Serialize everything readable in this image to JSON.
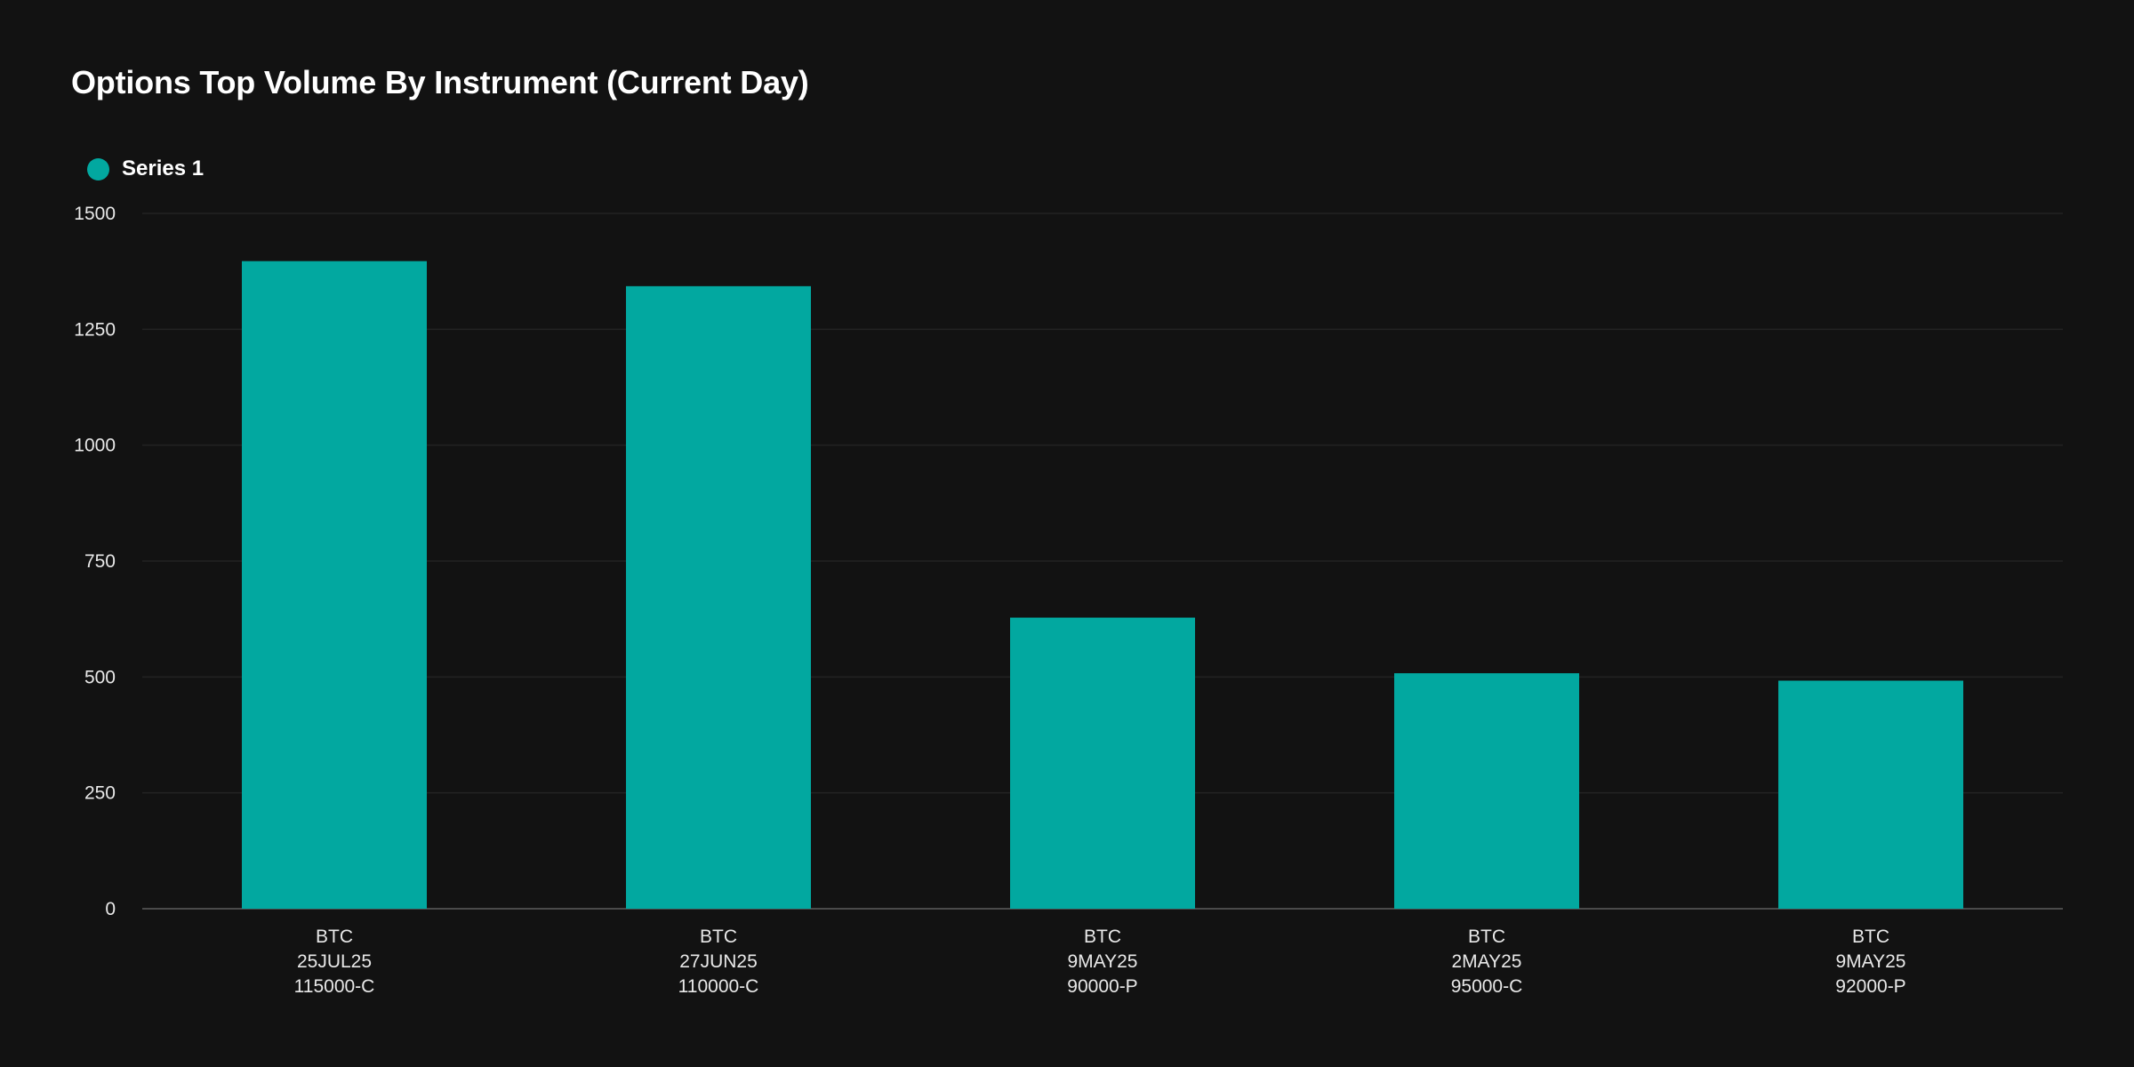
{
  "title": "Options Top Volume By Instrument (Current Day)",
  "legend": {
    "label": "Series 1",
    "color": "#02A8A0"
  },
  "colors": {
    "background": "#121212",
    "bar": "#02A8A0",
    "grid": "#232323",
    "axis": "#4a4a4a",
    "text": "#e8e8e8"
  },
  "chart_data": {
    "type": "bar",
    "title": "Options Top Volume By Instrument (Current Day)",
    "categories": [
      [
        "BTC",
        "25JUL25",
        "115000-C"
      ],
      [
        "BTC",
        "27JUN25",
        "110000-C"
      ],
      [
        "BTC",
        "9MAY25",
        "90000-P"
      ],
      [
        "BTC",
        "2MAY25",
        "95000-C"
      ],
      [
        "BTC",
        "9MAY25",
        "92000-P"
      ]
    ],
    "series": [
      {
        "name": "Series 1",
        "values": [
          1397,
          1343,
          628,
          508,
          492
        ]
      }
    ],
    "ylim": [
      0,
      1500
    ],
    "yticks": [
      0,
      250,
      500,
      750,
      1000,
      1250,
      1500
    ],
    "grid": true,
    "legend_position": "top-left"
  }
}
